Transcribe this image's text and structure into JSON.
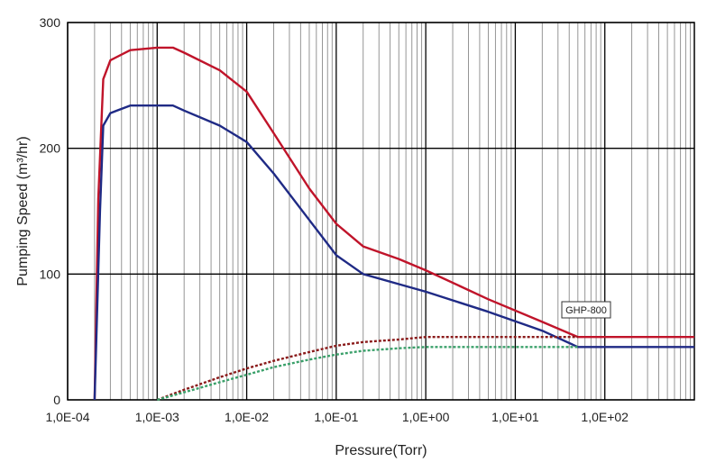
{
  "chart_data": {
    "type": "line",
    "title": "",
    "xlabel": "Pressure(Torr)",
    "ylabel": "Pumping Speed (m³/hr)",
    "x_scale": "log",
    "xlim": [
      0.0001,
      1000
    ],
    "ylim": [
      0,
      300
    ],
    "x_ticks": [
      0.0001,
      0.001,
      0.01,
      0.1,
      1,
      10,
      100
    ],
    "x_tick_labels": [
      "1,0E-04",
      "1,0E-03",
      "1,0E-02",
      "1,0E-01",
      "1,0E+00",
      "1,0E+01",
      "1,0E+02"
    ],
    "y_ticks": [
      0,
      100,
      200,
      300
    ],
    "y_tick_labels": [
      "0",
      "100",
      "200",
      "300"
    ],
    "grid": true,
    "annotation": "GHP-800",
    "series": [
      {
        "color": "#c0142a",
        "style": "solid",
        "points": [
          [
            0.0002,
            0
          ],
          [
            0.00022,
            160
          ],
          [
            0.00025,
            255
          ],
          [
            0.0003,
            270
          ],
          [
            0.0005,
            278
          ],
          [
            0.001,
            280
          ],
          [
            0.0015,
            280
          ],
          [
            0.002,
            276
          ],
          [
            0.005,
            262
          ],
          [
            0.01,
            245
          ],
          [
            0.02,
            212
          ],
          [
            0.05,
            168
          ],
          [
            0.1,
            140
          ],
          [
            0.2,
            122
          ],
          [
            0.5,
            112
          ],
          [
            1,
            103
          ],
          [
            5,
            80
          ],
          [
            20,
            62
          ],
          [
            50,
            50
          ],
          [
            200,
            50
          ],
          [
            1000,
            50
          ]
        ]
      },
      {
        "color": "#1f2a85",
        "style": "solid",
        "points": [
          [
            0.0002,
            0
          ],
          [
            0.00023,
            150
          ],
          [
            0.00025,
            218
          ],
          [
            0.0003,
            228
          ],
          [
            0.0005,
            234
          ],
          [
            0.001,
            234
          ],
          [
            0.0015,
            234
          ],
          [
            0.002,
            230
          ],
          [
            0.005,
            218
          ],
          [
            0.01,
            205
          ],
          [
            0.02,
            180
          ],
          [
            0.05,
            143
          ],
          [
            0.1,
            115
          ],
          [
            0.2,
            100
          ],
          [
            0.5,
            92
          ],
          [
            1,
            86
          ],
          [
            5,
            70
          ],
          [
            20,
            55
          ],
          [
            50,
            42
          ],
          [
            200,
            42
          ],
          [
            1000,
            42
          ]
        ]
      },
      {
        "color": "#8a1a1a",
        "style": "dotted",
        "points": [
          [
            0.001,
            0
          ],
          [
            0.002,
            8
          ],
          [
            0.005,
            18
          ],
          [
            0.01,
            25
          ],
          [
            0.02,
            31
          ],
          [
            0.05,
            38
          ],
          [
            0.1,
            43
          ],
          [
            0.2,
            46
          ],
          [
            0.5,
            48
          ],
          [
            1,
            50
          ],
          [
            5,
            50
          ],
          [
            20,
            50
          ],
          [
            50,
            50
          ]
        ]
      },
      {
        "color": "#3aa06a",
        "style": "dotted",
        "points": [
          [
            0.001,
            0
          ],
          [
            0.002,
            6
          ],
          [
            0.005,
            14
          ],
          [
            0.01,
            20
          ],
          [
            0.02,
            26
          ],
          [
            0.05,
            32
          ],
          [
            0.1,
            36
          ],
          [
            0.2,
            39
          ],
          [
            0.5,
            41
          ],
          [
            1,
            42
          ],
          [
            5,
            42
          ],
          [
            20,
            42
          ],
          [
            50,
            42
          ]
        ]
      }
    ]
  }
}
